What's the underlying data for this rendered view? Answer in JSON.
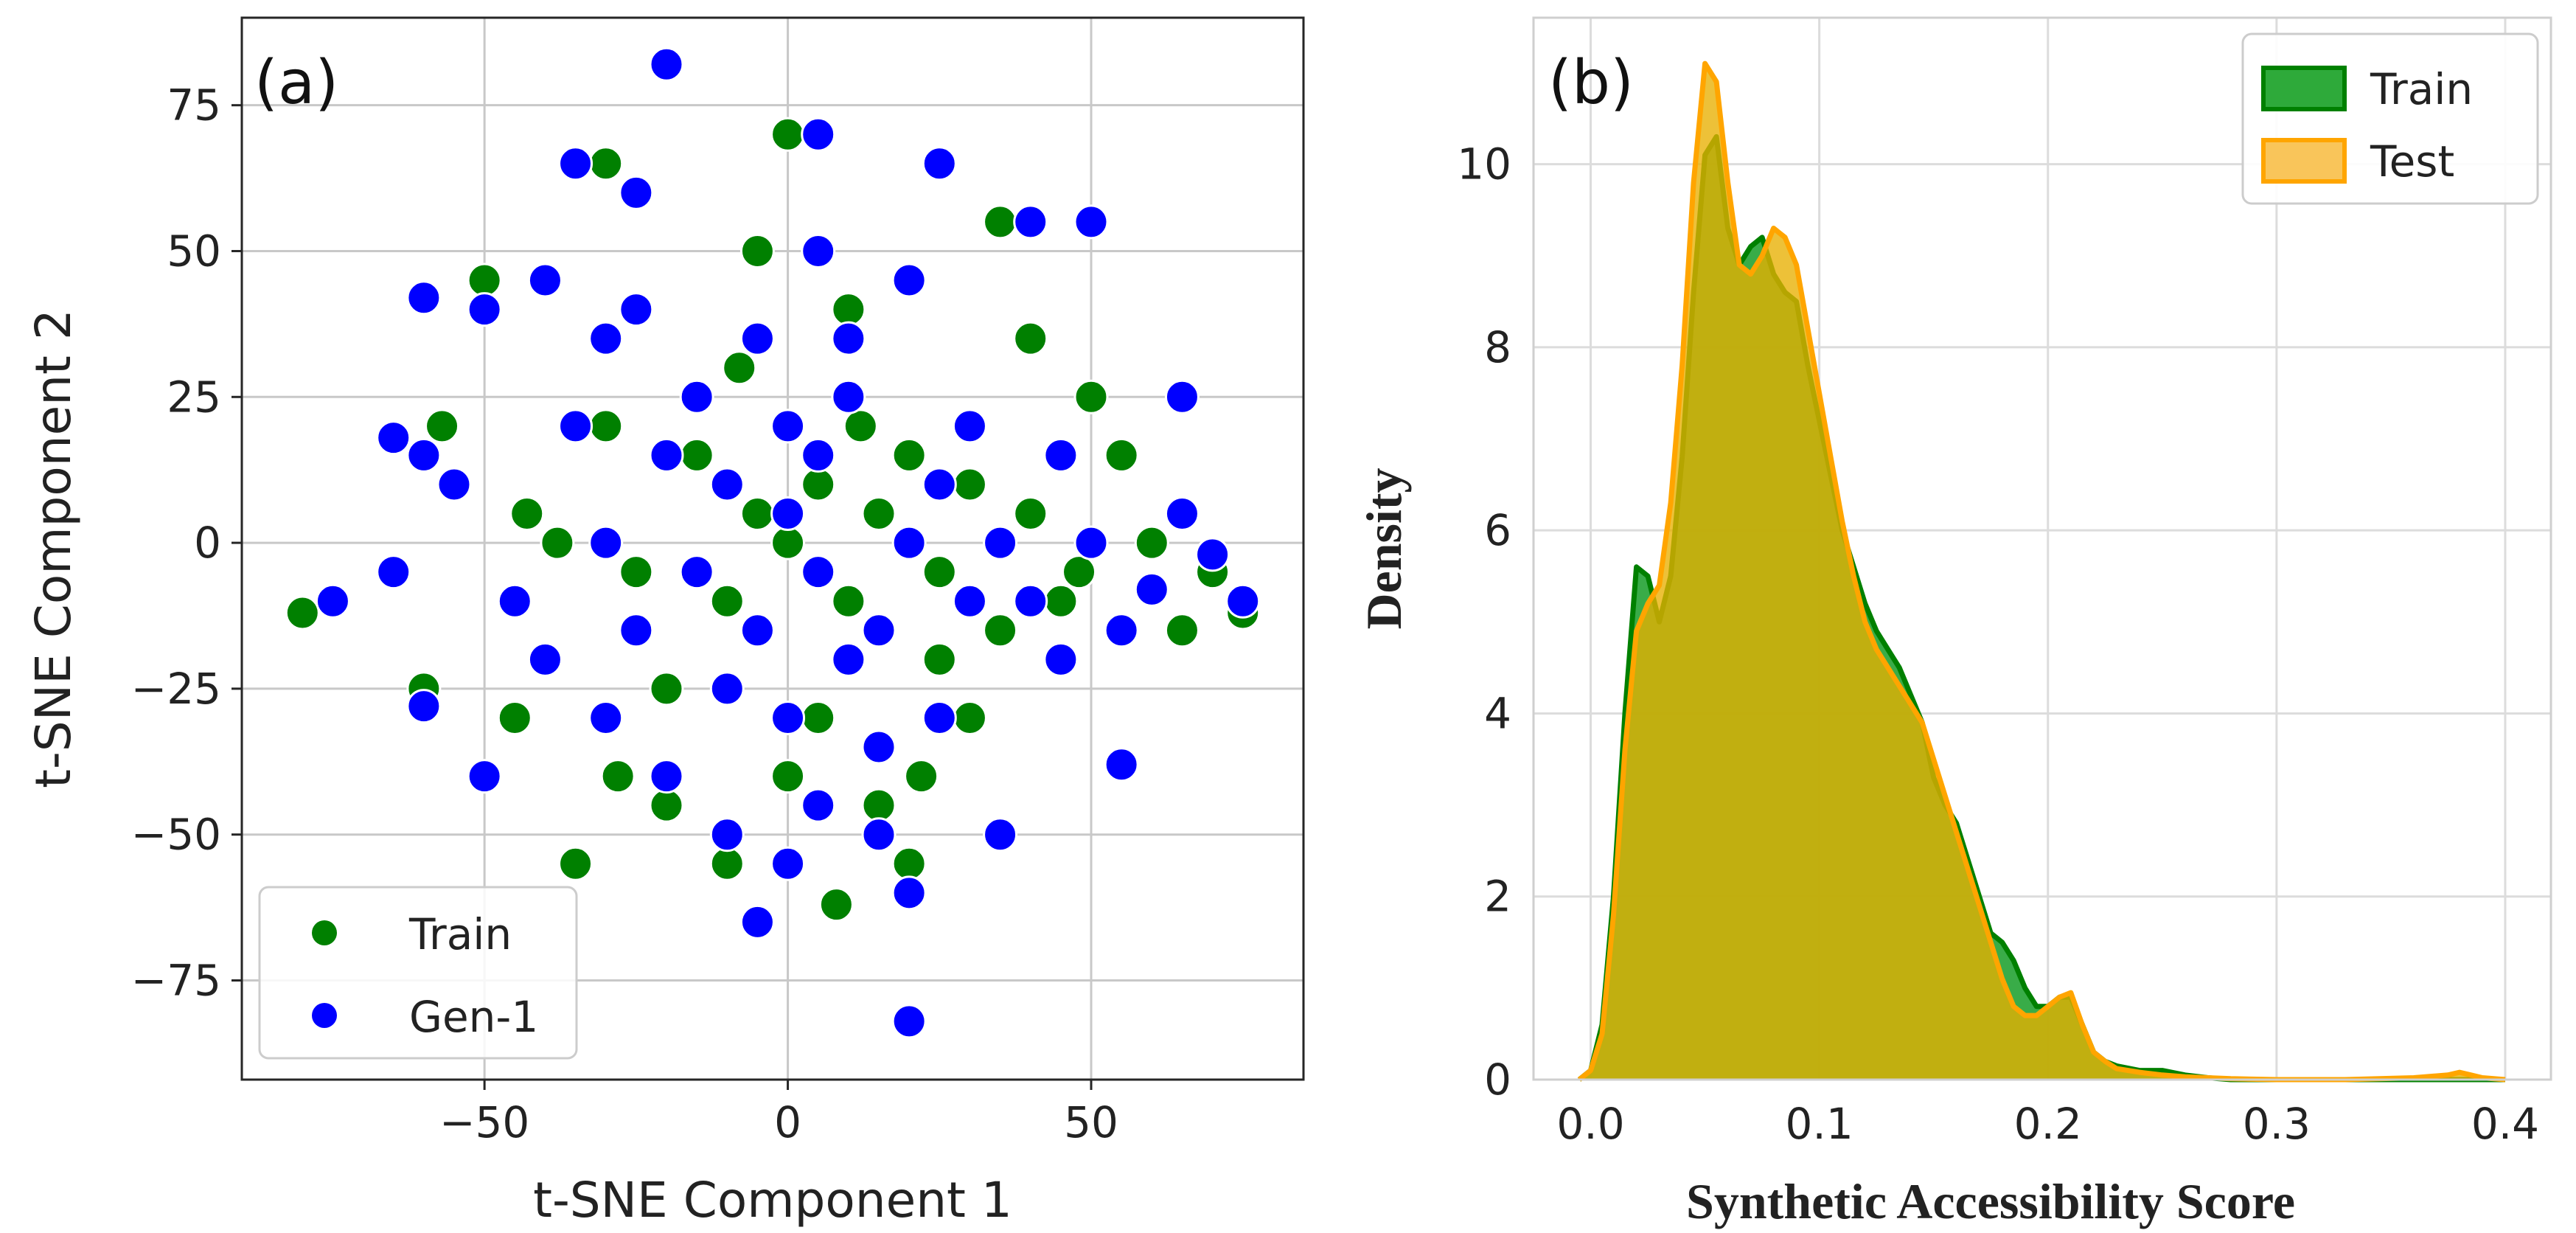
{
  "chart_data": [
    {
      "panel": "(a)",
      "type": "scatter",
      "title": "",
      "xlabel": "t-SNE Component 1",
      "ylabel": "t-SNE Component 2",
      "xlim": [
        -90,
        85
      ],
      "ylim": [
        -92,
        90
      ],
      "xticks": [
        -50,
        0,
        50
      ],
      "xtick_labels": [
        "−50",
        "0",
        "50"
      ],
      "yticks": [
        -75,
        -50,
        -25,
        0,
        25,
        50,
        75
      ],
      "ytick_labels": [
        "−75",
        "−50",
        "−25",
        "0",
        "25",
        "50",
        "75"
      ],
      "grid": true,
      "legend_position": "bottom-left",
      "series": [
        {
          "name": "Train",
          "color": "#008000",
          "points": [
            [
              -50,
              45
            ],
            [
              -57,
              20
            ],
            [
              -43,
              5
            ],
            [
              -30,
              20
            ],
            [
              -25,
              -5
            ],
            [
              -15,
              15
            ],
            [
              -8,
              30
            ],
            [
              -5,
              5
            ],
            [
              0,
              0
            ],
            [
              5,
              10
            ],
            [
              10,
              -10
            ],
            [
              15,
              5
            ],
            [
              20,
              15
            ],
            [
              25,
              -5
            ],
            [
              30,
              10
            ],
            [
              35,
              -15
            ],
            [
              40,
              5
            ],
            [
              45,
              -10
            ],
            [
              55,
              15
            ],
            [
              60,
              0
            ],
            [
              70,
              -5
            ],
            [
              75,
              -12
            ],
            [
              -20,
              -45
            ],
            [
              -10,
              -55
            ],
            [
              0,
              -40
            ],
            [
              5,
              -30
            ],
            [
              15,
              -45
            ],
            [
              20,
              -55
            ],
            [
              -35,
              -55
            ],
            [
              -45,
              -30
            ],
            [
              30,
              -30
            ],
            [
              40,
              35
            ],
            [
              50,
              25
            ],
            [
              -5,
              50
            ],
            [
              10,
              40
            ],
            [
              35,
              55
            ],
            [
              -30,
              65
            ],
            [
              0,
              70
            ],
            [
              -80,
              -12
            ],
            [
              -60,
              -25
            ],
            [
              25,
              -20
            ],
            [
              -20,
              -25
            ],
            [
              12,
              20
            ],
            [
              -10,
              -10
            ],
            [
              48,
              -5
            ],
            [
              65,
              -15
            ],
            [
              -38,
              0
            ],
            [
              8,
              -62
            ],
            [
              22,
              -40
            ],
            [
              -28,
              -40
            ]
          ]
        },
        {
          "name": "Gen-1",
          "color": "#0000ff",
          "points": [
            [
              -20,
              82
            ],
            [
              5,
              70
            ],
            [
              -25,
              60
            ],
            [
              -35,
              65
            ],
            [
              -50,
              40
            ],
            [
              -60,
              42
            ],
            [
              -25,
              40
            ],
            [
              -30,
              35
            ],
            [
              -60,
              15
            ],
            [
              -65,
              18
            ],
            [
              -55,
              10
            ],
            [
              -45,
              -10
            ],
            [
              -35,
              20
            ],
            [
              -30,
              0
            ],
            [
              -20,
              15
            ],
            [
              -10,
              10
            ],
            [
              -15,
              25
            ],
            [
              -5,
              -15
            ],
            [
              0,
              20
            ],
            [
              5,
              -5
            ],
            [
              10,
              25
            ],
            [
              15,
              -15
            ],
            [
              20,
              0
            ],
            [
              25,
              10
            ],
            [
              30,
              20
            ],
            [
              35,
              0
            ],
            [
              40,
              -10
            ],
            [
              45,
              15
            ],
            [
              50,
              0
            ],
            [
              55,
              -15
            ],
            [
              60,
              -8
            ],
            [
              65,
              5
            ],
            [
              70,
              -2
            ],
            [
              75,
              -10
            ],
            [
              -40,
              -20
            ],
            [
              -30,
              -30
            ],
            [
              -20,
              -40
            ],
            [
              -10,
              -50
            ],
            [
              0,
              -55
            ],
            [
              5,
              -45
            ],
            [
              15,
              -35
            ],
            [
              20,
              -60
            ],
            [
              25,
              -30
            ],
            [
              35,
              -50
            ],
            [
              20,
              -82
            ],
            [
              -75,
              -10
            ],
            [
              -50,
              -40
            ],
            [
              -60,
              -28
            ],
            [
              -10,
              -25
            ],
            [
              0,
              -30
            ],
            [
              10,
              -20
            ],
            [
              40,
              55
            ],
            [
              50,
              55
            ],
            [
              20,
              45
            ],
            [
              5,
              50
            ],
            [
              -5,
              -65
            ],
            [
              25,
              65
            ],
            [
              55,
              -38
            ],
            [
              65,
              25
            ],
            [
              -65,
              -5
            ],
            [
              -40,
              45
            ],
            [
              10,
              35
            ],
            [
              30,
              -10
            ],
            [
              -15,
              -5
            ],
            [
              45,
              -20
            ],
            [
              -25,
              -15
            ],
            [
              0,
              5
            ],
            [
              5,
              15
            ],
            [
              -5,
              35
            ],
            [
              15,
              -50
            ]
          ]
        }
      ]
    },
    {
      "panel": "(b)",
      "type": "area",
      "title": "",
      "xlabel": "Synthetic Accessibility Score",
      "ylabel": "Density",
      "xlim": [
        -0.025,
        0.42
      ],
      "ylim": [
        0,
        11.6
      ],
      "xticks": [
        0.0,
        0.1,
        0.2,
        0.3,
        0.4
      ],
      "xtick_labels": [
        "0.0",
        "0.1",
        "0.2",
        "0.3",
        "0.4"
      ],
      "yticks": [
        0,
        2,
        4,
        6,
        8,
        10
      ],
      "ytick_labels": [
        "0",
        "2",
        "4",
        "6",
        "8",
        "10"
      ],
      "grid": true,
      "legend_position": "top-right",
      "x": [
        -0.005,
        0.0,
        0.005,
        0.01,
        0.015,
        0.02,
        0.025,
        0.03,
        0.035,
        0.04,
        0.045,
        0.05,
        0.055,
        0.06,
        0.065,
        0.07,
        0.075,
        0.08,
        0.085,
        0.09,
        0.095,
        0.1,
        0.105,
        0.11,
        0.115,
        0.12,
        0.125,
        0.13,
        0.135,
        0.14,
        0.145,
        0.15,
        0.155,
        0.16,
        0.165,
        0.17,
        0.175,
        0.18,
        0.185,
        0.19,
        0.195,
        0.2,
        0.205,
        0.21,
        0.215,
        0.22,
        0.225,
        0.23,
        0.24,
        0.25,
        0.26,
        0.27,
        0.28,
        0.3,
        0.33,
        0.36,
        0.375,
        0.38,
        0.385,
        0.39,
        0.4
      ],
      "series": [
        {
          "name": "Train",
          "color": "#008000",
          "values": [
            0,
            0.1,
            0.6,
            2.0,
            4.0,
            5.6,
            5.5,
            5.0,
            5.5,
            6.8,
            8.6,
            10.1,
            10.3,
            9.3,
            8.9,
            9.1,
            9.2,
            8.8,
            8.6,
            8.5,
            7.8,
            7.2,
            6.6,
            6.0,
            5.6,
            5.2,
            4.9,
            4.7,
            4.5,
            4.2,
            3.9,
            3.3,
            3.0,
            2.8,
            2.4,
            2.0,
            1.6,
            1.5,
            1.3,
            1.0,
            0.8,
            0.8,
            0.9,
            0.9,
            0.6,
            0.3,
            0.2,
            0.15,
            0.1,
            0.1,
            0.05,
            0.02,
            0,
            0,
            0,
            0,
            0,
            0,
            0,
            0,
            0
          ]
        },
        {
          "name": "Test",
          "color": "#ffa500",
          "values": [
            0,
            0.1,
            0.5,
            1.8,
            3.6,
            4.9,
            5.2,
            5.4,
            6.3,
            7.8,
            9.8,
            11.1,
            10.9,
            9.8,
            8.9,
            8.8,
            9.0,
            9.3,
            9.2,
            8.9,
            8.2,
            7.5,
            6.8,
            6.1,
            5.5,
            5.0,
            4.7,
            4.5,
            4.3,
            4.1,
            3.9,
            3.5,
            3.1,
            2.7,
            2.3,
            1.9,
            1.5,
            1.1,
            0.8,
            0.7,
            0.7,
            0.8,
            0.9,
            0.95,
            0.6,
            0.3,
            0.2,
            0.12,
            0.08,
            0.05,
            0.03,
            0.02,
            0.01,
            0,
            0,
            0.02,
            0.05,
            0.08,
            0.05,
            0.02,
            0
          ]
        }
      ]
    }
  ]
}
